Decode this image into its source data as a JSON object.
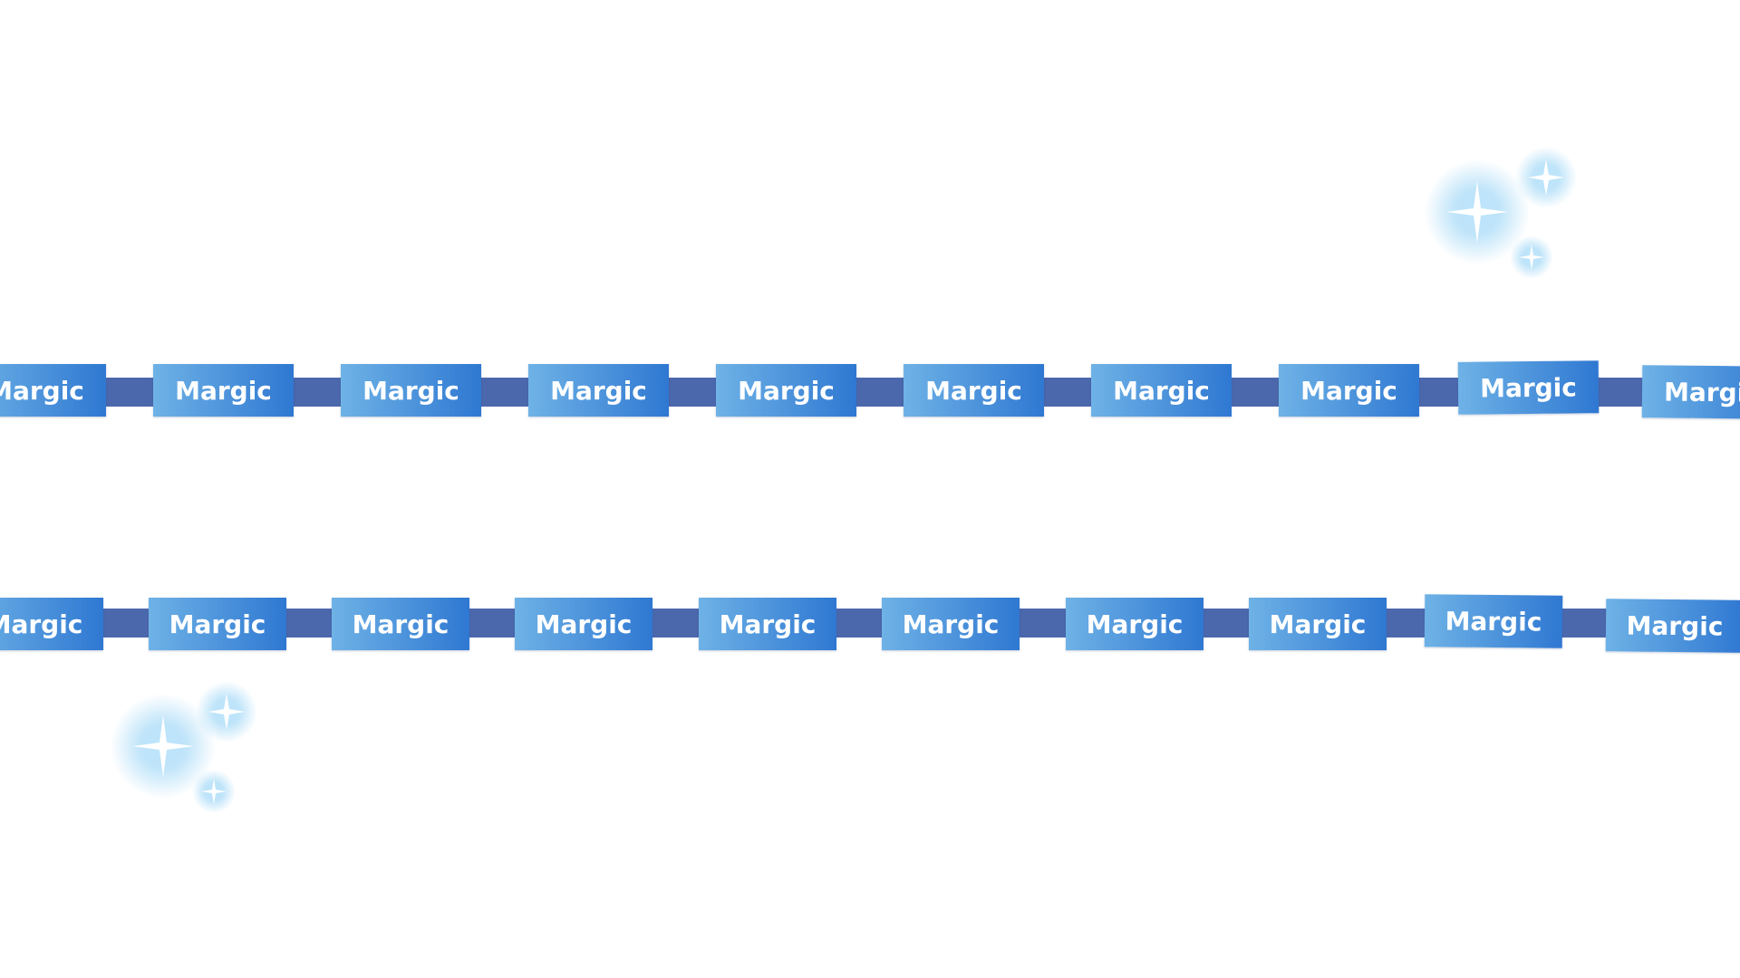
{
  "banner": {
    "chip_label": "Margic",
    "colors": {
      "background": "#ffffff",
      "band": "#4c68ad",
      "chip_gradient_start": "#6eb2e6",
      "chip_gradient_end": "#2f78d2",
      "chip_text": "#ffffff",
      "sparkle_glow": "#8fd0f5",
      "sparkle_core": "#ffffff"
    }
  },
  "icons": {
    "sparkle_top": "sparkle-cluster-icon",
    "sparkle_bottom": "sparkle-cluster-icon"
  }
}
